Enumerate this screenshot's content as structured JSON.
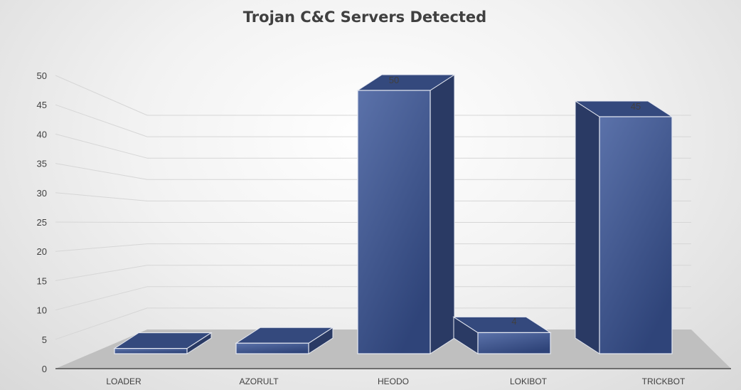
{
  "chart_data": {
    "type": "bar",
    "title": "Trojan C&C Servers Detected",
    "xlabel": "",
    "ylabel": "",
    "categories": [
      "LOADER",
      "AZORULT",
      "HEODO",
      "LOKIBOT",
      "TRICKBOT"
    ],
    "values": [
      1,
      2,
      50,
      4,
      45
    ],
    "data_labels": [
      "",
      "",
      "50",
      "4",
      "45"
    ],
    "y_ticks": [
      "0",
      "5",
      "10",
      "15",
      "20",
      "25",
      "30",
      "35",
      "40",
      "45",
      "50"
    ],
    "ylim": [
      0,
      50
    ],
    "grid": true,
    "legend": "none",
    "three_d": true,
    "colors": {
      "bar_front": "#3f5894",
      "bar_front_light": "#5b72aa",
      "bar_top": "#34497d",
      "bar_side": "#2a3a64",
      "bar_edge": "#e6e9f2",
      "floor": "#bfbfbf",
      "gridline": "#d6d6d6",
      "text": "#404040"
    }
  }
}
